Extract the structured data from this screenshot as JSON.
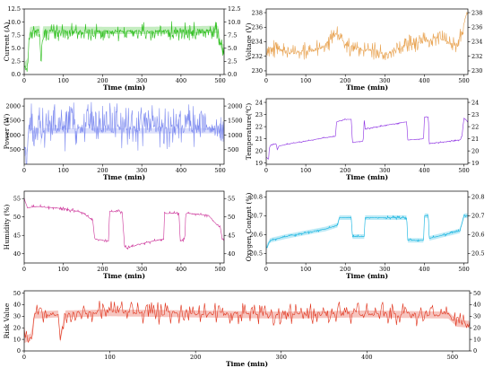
{
  "chart_data": [
    {
      "id": "current",
      "type": "line",
      "xlabel": "Time (min)",
      "ylabel": "Current (A)",
      "xlim": [
        0,
        510
      ],
      "ylim": [
        0,
        12.5
      ],
      "xticks": [
        0,
        100,
        200,
        300,
        400,
        500
      ],
      "yticks_left": [
        0.0,
        2.5,
        5.0,
        7.5,
        10.0,
        12.5
      ],
      "yticks_right": [
        0.0,
        2.5,
        5.0,
        7.5,
        10.0,
        12.5
      ],
      "tick_decimals": 1,
      "series": [
        {
          "color": "#2fbf1f",
          "band": 0.7,
          "points": [
            [
              0,
              1.6
            ],
            [
              5,
              2.0
            ],
            [
              10,
              2.6
            ],
            [
              12,
              6.8
            ],
            [
              15,
              8.4
            ],
            [
              40,
              8.6
            ],
            [
              42,
              2.5
            ],
            [
              48,
              8.5
            ],
            [
              100,
              8.5
            ],
            [
              200,
              8.4
            ],
            [
              300,
              8.4
            ],
            [
              400,
              8.5
            ],
            [
              495,
              8.6
            ],
            [
              500,
              6.0
            ],
            [
              505,
              5.2
            ],
            [
              510,
              5.0
            ]
          ],
          "spikes": {
            "amp": 1.3,
            "bias": -0.3,
            "density": 2
          }
        }
      ],
      "grid": false
    },
    {
      "id": "voltage",
      "type": "line",
      "xlabel": "Time (min)",
      "ylabel": "Voltage (V)",
      "xlim": [
        0,
        510
      ],
      "ylim": [
        229.5,
        238.5
      ],
      "xticks": [
        0,
        100,
        200,
        300,
        400,
        500
      ],
      "yticks_left": [
        230,
        232,
        234,
        236,
        238
      ],
      "yticks_right": [
        230,
        232,
        234,
        236,
        238
      ],
      "tick_decimals": 0,
      "series": [
        {
          "color": "#e8a250",
          "band": 0,
          "points": [
            [
              0,
              233.2
            ],
            [
              20,
              233.0
            ],
            [
              60,
              232.5
            ],
            [
              100,
              232.6
            ],
            [
              140,
              233.2
            ],
            [
              180,
              235.2
            ],
            [
              200,
              233.5
            ],
            [
              240,
              233.0
            ],
            [
              270,
              232.8
            ],
            [
              300,
              232.3
            ],
            [
              330,
              233.0
            ],
            [
              360,
              233.6
            ],
            [
              400,
              234.0
            ],
            [
              420,
              234.3
            ],
            [
              440,
              234.6
            ],
            [
              460,
              233.8
            ],
            [
              480,
              233.5
            ],
            [
              495,
              235.5
            ],
            [
              505,
              237.5
            ],
            [
              510,
              237.8
            ]
          ],
          "spikes": {
            "amp": 0.9,
            "bias": 0,
            "density": 2
          }
        }
      ],
      "grid": false
    },
    {
      "id": "power",
      "type": "line",
      "xlabel": "Time (min)",
      "ylabel": "Power (W)",
      "xlim": [
        0,
        510
      ],
      "ylim": [
        0,
        2250
      ],
      "xticks": [
        0,
        100,
        200,
        300,
        400,
        500
      ],
      "yticks_left": [
        500,
        1000,
        1500,
        2000
      ],
      "yticks_right": [
        500,
        1000,
        1500,
        2000
      ],
      "tick_decimals": 0,
      "series": [
        {
          "color": "#7f8cf0",
          "band": 90,
          "points": [
            [
              0,
              350
            ],
            [
              8,
              450
            ],
            [
              12,
              1150
            ],
            [
              40,
              1150
            ],
            [
              42,
              700
            ],
            [
              48,
              1150
            ],
            [
              200,
              1150
            ],
            [
              300,
              1150
            ],
            [
              400,
              1150
            ],
            [
              495,
              1150
            ],
            [
              500,
              900
            ],
            [
              510,
              850
            ]
          ],
          "spikes": {
            "amp": 600,
            "bias": 0.25,
            "density": 2
          }
        }
      ],
      "grid": false
    },
    {
      "id": "temperature",
      "type": "line",
      "xlabel": "Time (min)",
      "ylabel": "Temperature(℃)",
      "xlim": [
        0,
        510
      ],
      "ylim": [
        18.9,
        24.3
      ],
      "xticks": [
        0,
        100,
        200,
        300,
        400,
        500
      ],
      "yticks_left": [
        19,
        20,
        21,
        22,
        23,
        24
      ],
      "yticks_right": [
        19,
        20,
        21,
        22,
        23,
        24
      ],
      "tick_decimals": 0,
      "series": [
        {
          "color": "#8a2be2",
          "band": 0,
          "points": [
            [
              0,
              19.5
            ],
            [
              6,
              19.3
            ],
            [
              8,
              20.3
            ],
            [
              12,
              20.5
            ],
            [
              25,
              20.6
            ],
            [
              28,
              20.1
            ],
            [
              32,
              20.4
            ],
            [
              60,
              20.6
            ],
            [
              100,
              20.8
            ],
            [
              150,
              21.1
            ],
            [
              175,
              21.2
            ],
            [
              178,
              22.4
            ],
            [
              200,
              22.6
            ],
            [
              215,
              22.6
            ],
            [
              218,
              20.7
            ],
            [
              245,
              20.8
            ],
            [
              248,
              22.7
            ],
            [
              250,
              21.8
            ],
            [
              300,
              22.1
            ],
            [
              355,
              22.4
            ],
            [
              358,
              20.9
            ],
            [
              398,
              21.0
            ],
            [
              400,
              22.8
            ],
            [
              410,
              22.8
            ],
            [
              412,
              20.6
            ],
            [
              490,
              20.9
            ],
            [
              495,
              21.2
            ],
            [
              500,
              22.7
            ],
            [
              510,
              22.4
            ]
          ],
          "spikes": {
            "amp": 0.05,
            "bias": 0,
            "density": 1
          }
        }
      ],
      "grid": false
    },
    {
      "id": "humidity",
      "type": "line",
      "xlabel": "Time (min)",
      "ylabel": "Humidity (%)",
      "xlim": [
        0,
        510
      ],
      "ylim": [
        37.5,
        57
      ],
      "xticks": [
        0,
        100,
        200,
        300,
        400,
        500
      ],
      "yticks_left": [
        40,
        45,
        50,
        55
      ],
      "yticks_right": [
        40,
        45,
        50,
        55
      ],
      "tick_decimals": 0,
      "series": [
        {
          "color": "#cc3399",
          "band": 0,
          "points": [
            [
              0,
              55
            ],
            [
              3,
              54
            ],
            [
              8,
              52.5
            ],
            [
              30,
              52.8
            ],
            [
              60,
              52.6
            ],
            [
              100,
              52.3
            ],
            [
              150,
              51.2
            ],
            [
              175,
              49.0
            ],
            [
              180,
              44.0
            ],
            [
              215,
              43.5
            ],
            [
              218,
              51.5
            ],
            [
              250,
              51.4
            ],
            [
              256,
              42.0
            ],
            [
              262,
              41.5
            ],
            [
              290,
              42.5
            ],
            [
              330,
              43.5
            ],
            [
              356,
              44.0
            ],
            [
              358,
              51.0
            ],
            [
              395,
              51.0
            ],
            [
              398,
              43.5
            ],
            [
              410,
              44.0
            ],
            [
              412,
              51.0
            ],
            [
              470,
              50.5
            ],
            [
              490,
              48.0
            ],
            [
              500,
              47.5
            ],
            [
              505,
              44.0
            ],
            [
              510,
              43.5
            ]
          ],
          "spikes": {
            "amp": 0.4,
            "bias": 0,
            "density": 1
          }
        }
      ],
      "grid": false
    },
    {
      "id": "oxygen",
      "type": "line",
      "xlabel": "Time (min)",
      "ylabel": "Oxygen Content (%)",
      "xlim": [
        0,
        510
      ],
      "ylim": [
        20.45,
        20.83
      ],
      "xticks": [
        0,
        100,
        200,
        300,
        400,
        500
      ],
      "yticks_left": [
        20.5,
        20.6,
        20.7,
        20.8
      ],
      "yticks_right": [
        20.5,
        20.6,
        20.7,
        20.8
      ],
      "tick_decimals": 1,
      "series": [
        {
          "color": "#12b3e0",
          "band": 0.012,
          "points": [
            [
              0,
              20.53
            ],
            [
              10,
              20.57
            ],
            [
              50,
              20.59
            ],
            [
              100,
              20.61
            ],
            [
              150,
              20.63
            ],
            [
              180,
              20.65
            ],
            [
              185,
              20.69
            ],
            [
              215,
              20.69
            ],
            [
              218,
              20.59
            ],
            [
              248,
              20.59
            ],
            [
              250,
              20.69
            ],
            [
              300,
              20.69
            ],
            [
              355,
              20.69
            ],
            [
              358,
              20.57
            ],
            [
              398,
              20.57
            ],
            [
              400,
              20.7
            ],
            [
              410,
              20.7
            ],
            [
              412,
              20.58
            ],
            [
              490,
              20.62
            ],
            [
              500,
              20.7
            ],
            [
              510,
              20.7
            ]
          ],
          "spikes": {
            "amp": 0.006,
            "bias": 0,
            "density": 1
          }
        }
      ],
      "grid": false
    },
    {
      "id": "risk",
      "type": "line",
      "xlabel": "Time (min)",
      "ylabel": "Risk Value",
      "xlim": [
        0,
        520
      ],
      "ylim": [
        0,
        52
      ],
      "xticks": [
        0,
        100,
        200,
        300,
        400,
        500
      ],
      "yticks_left": [
        0,
        10,
        20,
        30,
        40,
        50
      ],
      "yticks_right": [
        0,
        10,
        20,
        30,
        40,
        50
      ],
      "tick_decimals": 0,
      "series": [
        {
          "color": "#e03018",
          "band": 3,
          "points": [
            [
              0,
              10
            ],
            [
              8,
              12
            ],
            [
              12,
              31
            ],
            [
              40,
              32
            ],
            [
              42,
              10
            ],
            [
              48,
              32
            ],
            [
              100,
              33
            ],
            [
              200,
              32
            ],
            [
              300,
              31
            ],
            [
              400,
              32
            ],
            [
              495,
              31
            ],
            [
              505,
              24
            ],
            [
              520,
              23
            ]
          ],
          "spikes": {
            "amp": 7,
            "bias": 0.1,
            "density": 2
          }
        }
      ],
      "grid": false
    }
  ]
}
